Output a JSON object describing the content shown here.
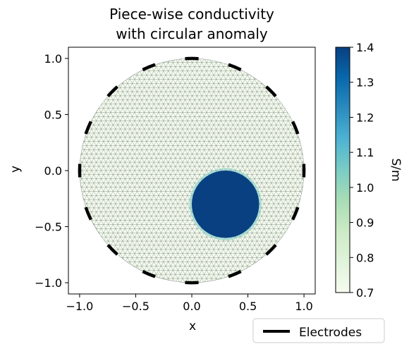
{
  "chart_data": {
    "type": "heatmap",
    "title_lines": [
      "Piece-wise conductivity",
      "with circular anomaly"
    ],
    "xlabel": "x",
    "ylabel": "y",
    "xlim": [
      -1.1,
      1.1
    ],
    "ylim": [
      -1.1,
      1.1
    ],
    "x_ticks": [
      -1.0,
      -0.5,
      0.0,
      0.5,
      1.0
    ],
    "x_tick_labels": [
      "−1.0",
      "−0.5",
      "0.0",
      "0.5",
      "1.0"
    ],
    "y_ticks": [
      1.0,
      0.5,
      0.0,
      -0.5,
      -1.0
    ],
    "y_tick_labels": [
      "1.0",
      "0.5",
      "0.0",
      "−0.5",
      "−1.0"
    ],
    "domain": {
      "shape": "circle",
      "center": [
        0,
        0
      ],
      "radius": 1.0
    },
    "background_conductivity": 0.7,
    "anomaly": {
      "shape": "circle",
      "center": [
        0.3,
        -0.3
      ],
      "radius": 0.3,
      "conductivity": 1.4
    },
    "electrodes": {
      "count": 16,
      "label": "Electrodes"
    },
    "colorbar": {
      "label": "S/m",
      "min": 0.7,
      "max": 1.4,
      "ticks": [
        1.4,
        1.3,
        1.2,
        1.1,
        1.0,
        0.9,
        0.8,
        0.7
      ],
      "tick_labels": [
        "1.4",
        "1.3",
        "1.2",
        "1.1",
        "1.0",
        "0.9",
        "0.8",
        "0.7"
      ],
      "colormap": "GnBu",
      "colors": [
        "#f7fcf0",
        "#e0f3db",
        "#ccebc5",
        "#a8ddb5",
        "#7bccc4",
        "#4eb3d3",
        "#2b8cbe",
        "#0868ac",
        "#084081"
      ]
    },
    "legend": {
      "entries": [
        "Electrodes"
      ],
      "placement": "lower-right-outside"
    },
    "grid": false
  }
}
